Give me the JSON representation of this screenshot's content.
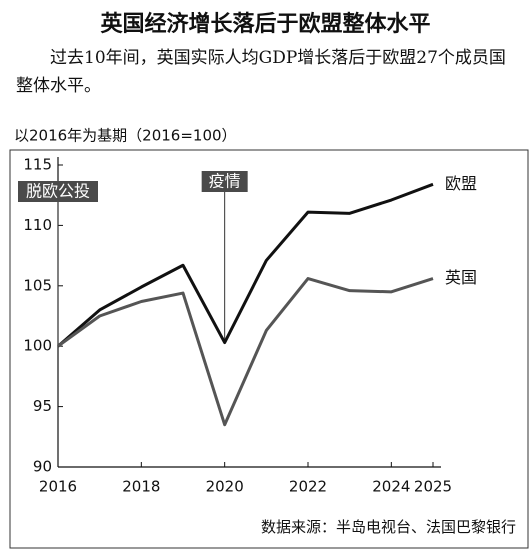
{
  "chart_data": {
    "type": "line",
    "title": "英国经济增长落后于欧盟整体水平",
    "subtitle": "过去10年间，英国实际人均GDP增长落后于欧盟27个成员国整体水平。",
    "y_axis_label": "以2016年为基期（2016=100）",
    "source": "数据来源：半岛电视台、法国巴黎银行",
    "x": [
      2016,
      2017,
      2018,
      2019,
      2020,
      2021,
      2022,
      2023,
      2024,
      2025
    ],
    "series": [
      {
        "name": "欧盟",
        "color": "#111111",
        "values": [
          100,
          103.0,
          104.9,
          106.7,
          100.3,
          107.1,
          111.1,
          111.0,
          112.1,
          113.4
        ]
      },
      {
        "name": "英国",
        "color": "#555555",
        "values": [
          100,
          102.5,
          103.7,
          104.4,
          93.5,
          101.3,
          105.6,
          104.6,
          104.5,
          105.6
        ]
      }
    ],
    "annotations": [
      {
        "text": "脱欧公投",
        "x": 2016
      },
      {
        "text": "疫情",
        "x": 2020
      }
    ],
    "xlim": [
      2016,
      2025
    ],
    "xticks": [
      2016,
      2018,
      2020,
      2022,
      2024,
      2025
    ],
    "ylim": [
      90,
      115
    ],
    "yticks": [
      90,
      95,
      100,
      105,
      110,
      115
    ]
  }
}
